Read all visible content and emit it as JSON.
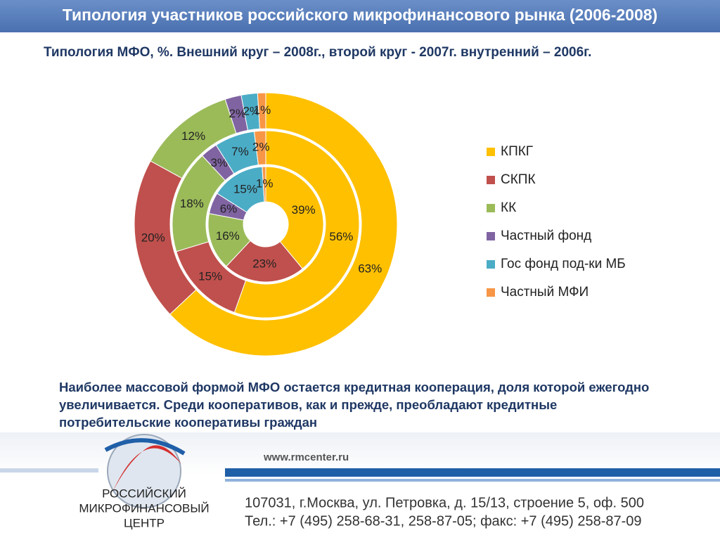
{
  "slide": {
    "title": "Типология участников российского микрофинансового рынка (2006-2008)",
    "note": "Наиболее массовой формой МФО остается кредитная кооперация, доля которой ежегодно увеличивается. Среди кооперативов, как и прежде, преобладают кредитные потребительские кооперативы граждан"
  },
  "chart_data": {
    "type": "donut",
    "title": "Типология МФО, %. Внешний круг – 2008г., второй круг - 2007г. внутренний – 2006г.",
    "categories": [
      "КПКГ",
      "СКПК",
      "КК",
      "Частный фонд",
      "Гос фонд под-ки МБ",
      "Частный МФИ"
    ],
    "colors": [
      "#ffc000",
      "#c0504d",
      "#9bbb59",
      "#8064a2",
      "#4bacc6",
      "#f79646"
    ],
    "series": [
      {
        "values": [
          63,
          20,
          12,
          2,
          2,
          1
        ],
        "value_labels": [
          "63%",
          "20%",
          "12%",
          "2%",
          "2%",
          "1%"
        ]
      },
      {
        "values": [
          56,
          15,
          18,
          3,
          7,
          2
        ],
        "value_labels": [
          "56%",
          "15%",
          "18%",
          "3%",
          "7%",
          "2%"
        ]
      },
      {
        "values": [
          39,
          23,
          16,
          6,
          15,
          1
        ],
        "value_labels": [
          "39%",
          "23%",
          "16%",
          "6%",
          "15%",
          "1%"
        ]
      }
    ]
  },
  "footer": {
    "url": "www.rmcenter.ru",
    "org": [
      "РОССИЙСКИЙ",
      "МИКРОФИНАНСОВЫЙ",
      "ЦЕНТР"
    ],
    "address": [
      "107031, г.Москва, ул. Петровка, д. 15/13, строение 5, оф. 500",
      "Тел.: +7 (495) 258-68-31, 258-87-05; факс: +7 (495) 258-87-09"
    ]
  }
}
